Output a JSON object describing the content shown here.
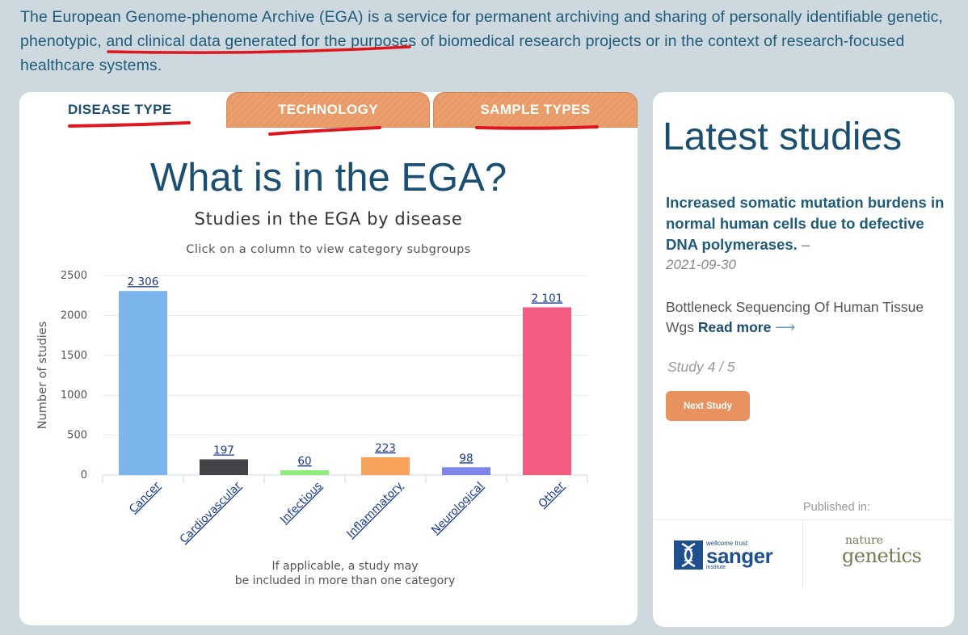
{
  "intro": {
    "before": "The European Genome-phenome Archive (EGA) is a service for permanent archiving and sharing of personally identifiable ",
    "highlight": "genetic, phenotypic, and clinical data",
    "after": " generated for the purposes of biomedical research projects or in the context of research-focused healthcare systems."
  },
  "tabs": [
    {
      "label": "DISEASE TYPE",
      "active": true
    },
    {
      "label": "TECHNOLOGY",
      "active": false
    },
    {
      "label": "SAMPLE TYPES",
      "active": false
    }
  ],
  "page_title": "What is in the EGA?",
  "chart_data": {
    "type": "bar",
    "title": "Studies in the EGA by disease",
    "subtitle": "Click on a column to view category subgroups",
    "ylabel": "Number of studies",
    "xlabel": "",
    "ylim": [
      0,
      2500
    ],
    "yticks": [
      "0",
      "500",
      "1000",
      "1500",
      "2000",
      "2500"
    ],
    "categories": [
      "Cancer",
      "Cardiovascular",
      "Infectious",
      "Inflammatory",
      "Neurological",
      "Other"
    ],
    "values": [
      2306,
      197,
      60,
      223,
      98,
      2101
    ],
    "value_labels": [
      "2 306",
      "197",
      "60",
      "223",
      "98",
      "2 101"
    ],
    "colors": [
      "#7cb5ec",
      "#434348",
      "#90ed7d",
      "#f7a35c",
      "#8085e9",
      "#f15c80"
    ],
    "grid": true,
    "caption_line1": "If applicable, a study may",
    "caption_line2": "be included in more than one category"
  },
  "latest": {
    "title": "Latest studies",
    "study_title": "Increased somatic mutation burdens in normal human cells due to defective DNA polymerases.",
    "dash": "–",
    "date": "2021-09-30",
    "description": "Bottleneck Sequencing Of Human Tissue Wgs",
    "read_more": "Read more",
    "arrow": "⟶",
    "counter": "Study 4 / 5",
    "next_button": "Next Study",
    "published_in": "Published in:",
    "logos": {
      "sanger_line1": "wellcome trust",
      "sanger_line2": "sanger",
      "sanger_line3": "institute",
      "nature_line1": "nature",
      "nature_line2": "genetics"
    }
  },
  "colors": {
    "background": "#cdd9de",
    "heading": "#1b4f72",
    "tab_inactive": "#e8935f",
    "annotation_red": "#e0161e"
  }
}
